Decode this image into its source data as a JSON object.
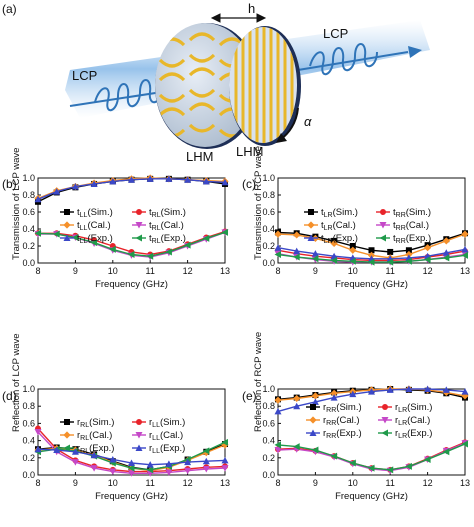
{
  "figure": {
    "panel_a_label": "(a)",
    "illustration": {
      "lcp_in": "LCP",
      "lcp_out": "LCP",
      "h_label": "h",
      "alpha_label": "α",
      "lhm_left": "LHM",
      "lhm_right": "LHM",
      "colors": {
        "beam": "#7fb4e6",
        "gold": "#e8b72a",
        "disk": "#c9d6e6",
        "helix": "#2f74b8"
      }
    }
  },
  "chart_data": [
    {
      "panel": "(b)",
      "type": "line",
      "xlabel": "Frequency (GHz)",
      "ylabel": "Transmission of LCP wave",
      "xlim": [
        8,
        13
      ],
      "ylim": [
        0,
        1.0
      ],
      "xticks": [
        "8",
        "9",
        "10",
        "11",
        "12",
        "13"
      ],
      "yticks": [
        "0.0",
        "0.2",
        "0.4",
        "0.6",
        "0.8",
        "1.0"
      ],
      "legend": [
        {
          "main": "t",
          "sub": "LL",
          "rest": "(Sim.)",
          "color": "#000000",
          "marker": "square"
        },
        {
          "main": "t",
          "sub": "RL",
          "rest": "(Sim.)",
          "color": "#e8232a",
          "marker": "circle"
        },
        {
          "main": "t",
          "sub": "LL",
          "rest": "(Cal.)",
          "color": "#f5902a",
          "marker": "diamond"
        },
        {
          "main": "t",
          "sub": "RL",
          "rest": "(Cal.)",
          "color": "#c548c8",
          "marker": "tri-down"
        },
        {
          "main": "t",
          "sub": "LL",
          "rest": "(Exp.)",
          "color": "#3b48c8",
          "marker": "tri-up"
        },
        {
          "main": "t",
          "sub": "RL",
          "rest": "(Exp.)",
          "color": "#1f9a4a",
          "marker": "tri-left"
        }
      ],
      "series": [
        {
          "color": "#000000",
          "marker": "square",
          "x": [
            8,
            8.5,
            9,
            9.5,
            10,
            10.5,
            11,
            11.5,
            12,
            12.5,
            13
          ],
          "y": [
            0.72,
            0.83,
            0.89,
            0.93,
            0.96,
            0.98,
            0.99,
            0.99,
            0.98,
            0.96,
            0.93
          ]
        },
        {
          "color": "#e8232a",
          "marker": "circle",
          "x": [
            8,
            8.5,
            9,
            9.5,
            10,
            10.5,
            11,
            11.5,
            12,
            12.5,
            13
          ],
          "y": [
            0.35,
            0.35,
            0.32,
            0.27,
            0.2,
            0.13,
            0.1,
            0.14,
            0.22,
            0.3,
            0.37
          ]
        },
        {
          "color": "#f5902a",
          "marker": "diamond",
          "x": [
            8,
            8.5,
            9,
            9.5,
            10,
            10.5,
            11,
            11.5,
            12,
            12.5,
            13
          ],
          "y": [
            0.76,
            0.85,
            0.9,
            0.94,
            0.97,
            0.99,
            1.0,
            0.99,
            0.98,
            0.97,
            0.96
          ]
        },
        {
          "color": "#c548c8",
          "marker": "tri-down",
          "x": [
            8,
            8.5,
            9,
            9.5,
            10,
            10.5,
            11,
            11.5,
            12,
            12.5,
            13
          ],
          "y": [
            0.34,
            0.34,
            0.3,
            0.23,
            0.15,
            0.09,
            0.07,
            0.12,
            0.2,
            0.28,
            0.36
          ]
        },
        {
          "color": "#3b48c8",
          "marker": "tri-up",
          "x": [
            8,
            8.5,
            9,
            9.5,
            10,
            10.5,
            11,
            11.5,
            12,
            12.5,
            13
          ],
          "y": [
            0.75,
            0.84,
            0.9,
            0.93,
            0.96,
            0.98,
            0.99,
            0.99,
            0.98,
            0.96,
            0.95
          ]
        },
        {
          "color": "#1f9a4a",
          "marker": "tri-left",
          "x": [
            8,
            8.5,
            9,
            9.5,
            10,
            10.5,
            11,
            11.5,
            12,
            12.5,
            13
          ],
          "y": [
            0.35,
            0.34,
            0.3,
            0.24,
            0.16,
            0.1,
            0.08,
            0.13,
            0.21,
            0.29,
            0.36
          ]
        }
      ]
    },
    {
      "panel": "(c)",
      "type": "line",
      "xlabel": "Frequency (GHz)",
      "ylabel": "Transmission of RCP wave",
      "xlim": [
        8,
        13
      ],
      "ylim": [
        0,
        1.0
      ],
      "xticks": [
        "8",
        "9",
        "10",
        "11",
        "12",
        "13"
      ],
      "yticks": [
        "0.0",
        "0.2",
        "0.4",
        "0.6",
        "0.8",
        "1.0"
      ],
      "legend": [
        {
          "main": "t",
          "sub": "LR",
          "rest": "(Sim.)",
          "color": "#000000",
          "marker": "square"
        },
        {
          "main": "t",
          "sub": "RR",
          "rest": "(Sim.)",
          "color": "#e8232a",
          "marker": "circle"
        },
        {
          "main": "t",
          "sub": "LR",
          "rest": "(Cal.)",
          "color": "#f5902a",
          "marker": "diamond"
        },
        {
          "main": "t",
          "sub": "RR",
          "rest": "(Cal.)",
          "color": "#c548c8",
          "marker": "tri-down"
        },
        {
          "main": "t",
          "sub": "LR",
          "rest": "(Exp.)",
          "color": "#3b48c8",
          "marker": "tri-up"
        },
        {
          "main": "t",
          "sub": "RR",
          "rest": "(Exp.)",
          "color": "#1f9a4a",
          "marker": "tri-left"
        }
      ],
      "series": [
        {
          "color": "#000000",
          "marker": "square",
          "x": [
            8,
            8.5,
            9,
            9.5,
            10,
            10.5,
            11,
            11.5,
            12,
            12.5,
            13
          ],
          "y": [
            0.36,
            0.35,
            0.31,
            0.26,
            0.2,
            0.15,
            0.13,
            0.15,
            0.21,
            0.28,
            0.35
          ]
        },
        {
          "color": "#e8232a",
          "marker": "circle",
          "x": [
            8,
            8.5,
            9,
            9.5,
            10,
            10.5,
            11,
            11.5,
            12,
            12.5,
            13
          ],
          "y": [
            0.15,
            0.11,
            0.08,
            0.06,
            0.04,
            0.03,
            0.03,
            0.04,
            0.07,
            0.1,
            0.14
          ]
        },
        {
          "color": "#f5902a",
          "marker": "diamond",
          "x": [
            8,
            8.5,
            9,
            9.5,
            10,
            10.5,
            11,
            11.5,
            12,
            12.5,
            13
          ],
          "y": [
            0.34,
            0.33,
            0.29,
            0.23,
            0.15,
            0.09,
            0.06,
            0.1,
            0.18,
            0.26,
            0.34
          ]
        },
        {
          "color": "#c548c8",
          "marker": "tri-down",
          "x": [
            8,
            8.5,
            9,
            9.5,
            10,
            10.5,
            11,
            11.5,
            12,
            12.5,
            13
          ],
          "y": [
            0.11,
            0.07,
            0.04,
            0.02,
            0.01,
            0.01,
            0.01,
            0.02,
            0.04,
            0.07,
            0.1
          ]
        },
        {
          "color": "#3b48c8",
          "marker": "tri-up",
          "x": [
            8,
            8.5,
            9,
            9.5,
            10,
            10.5,
            11,
            11.5,
            12,
            12.5,
            13
          ],
          "y": [
            0.18,
            0.14,
            0.11,
            0.08,
            0.06,
            0.05,
            0.05,
            0.06,
            0.08,
            0.12,
            0.16
          ]
        },
        {
          "color": "#1f9a4a",
          "marker": "tri-left",
          "x": [
            8,
            8.5,
            9,
            9.5,
            10,
            10.5,
            11,
            11.5,
            12,
            12.5,
            13
          ],
          "y": [
            0.1,
            0.07,
            0.05,
            0.03,
            0.02,
            0.01,
            0.01,
            0.02,
            0.04,
            0.06,
            0.09
          ]
        }
      ]
    },
    {
      "panel": "(d)",
      "type": "line",
      "xlabel": "Frequency (GHz)",
      "ylabel": "Reflection of LCP wave",
      "xlim": [
        8,
        13
      ],
      "ylim": [
        0,
        1.0
      ],
      "xticks": [
        "8",
        "9",
        "10",
        "11",
        "12",
        "13"
      ],
      "yticks": [
        "0.0",
        "0.2",
        "0.4",
        "0.6",
        "0.8",
        "1.0"
      ],
      "legend": [
        {
          "main": "r",
          "sub": "RL",
          "rest": "(Sim.)",
          "color": "#000000",
          "marker": "square"
        },
        {
          "main": "r",
          "sub": "LL",
          "rest": "(Sim.)",
          "color": "#e8232a",
          "marker": "circle"
        },
        {
          "main": "r",
          "sub": "RL",
          "rest": "(Cal.)",
          "color": "#f5902a",
          "marker": "diamond"
        },
        {
          "main": "r",
          "sub": "LL",
          "rest": "(Cal.)",
          "color": "#c548c8",
          "marker": "tri-down"
        },
        {
          "main": "r",
          "sub": "RL",
          "rest": "(Exp.)",
          "color": "#1f9a4a",
          "marker": "tri-left"
        },
        {
          "main": "r",
          "sub": "LL",
          "rest": "(Exp.)",
          "color": "#3b48c8",
          "marker": "tri-up"
        }
      ],
      "series": [
        {
          "color": "#000000",
          "marker": "square",
          "x": [
            8,
            8.5,
            9,
            9.5,
            10,
            10.5,
            11,
            11.5,
            12,
            12.5,
            13
          ],
          "y": [
            0.3,
            0.32,
            0.3,
            0.24,
            0.16,
            0.09,
            0.06,
            0.1,
            0.18,
            0.27,
            0.36
          ]
        },
        {
          "color": "#e8232a",
          "marker": "circle",
          "x": [
            8,
            8.5,
            9,
            9.5,
            10,
            10.5,
            11,
            11.5,
            12,
            12.5,
            13
          ],
          "y": [
            0.54,
            0.3,
            0.17,
            0.1,
            0.06,
            0.04,
            0.04,
            0.05,
            0.07,
            0.09,
            0.1
          ]
        },
        {
          "color": "#f5902a",
          "marker": "diamond",
          "x": [
            8,
            8.5,
            9,
            9.5,
            10,
            10.5,
            11,
            11.5,
            12,
            12.5,
            13
          ],
          "y": [
            0.29,
            0.31,
            0.29,
            0.23,
            0.15,
            0.08,
            0.05,
            0.09,
            0.17,
            0.26,
            0.35
          ]
        },
        {
          "color": "#c548c8",
          "marker": "tri-down",
          "x": [
            8,
            8.5,
            9,
            9.5,
            10,
            10.5,
            11,
            11.5,
            12,
            12.5,
            13
          ],
          "y": [
            0.5,
            0.27,
            0.15,
            0.08,
            0.04,
            0.02,
            0.02,
            0.03,
            0.05,
            0.07,
            0.08
          ]
        },
        {
          "color": "#1f9a4a",
          "marker": "tri-left",
          "x": [
            8,
            8.5,
            9,
            9.5,
            10,
            10.5,
            11,
            11.5,
            12,
            12.5,
            13
          ],
          "y": [
            0.27,
            0.3,
            0.28,
            0.22,
            0.14,
            0.08,
            0.06,
            0.1,
            0.18,
            0.28,
            0.38
          ]
        },
        {
          "color": "#3b48c8",
          "marker": "tri-up",
          "x": [
            8,
            8.5,
            9,
            9.5,
            10,
            10.5,
            11,
            11.5,
            12,
            12.5,
            13
          ],
          "y": [
            0.3,
            0.29,
            0.27,
            0.23,
            0.18,
            0.14,
            0.12,
            0.13,
            0.15,
            0.16,
            0.17
          ]
        }
      ]
    },
    {
      "panel": "(e)",
      "type": "line",
      "xlabel": "Frequency (GHz)",
      "ylabel": "Reflection of RCP wave",
      "xlim": [
        8,
        13
      ],
      "ylim": [
        0,
        1.0
      ],
      "xticks": [
        "8",
        "9",
        "10",
        "11",
        "12",
        "13"
      ],
      "yticks": [
        "0.0",
        "0.2",
        "0.4",
        "0.6",
        "0.8",
        "1.0"
      ],
      "legend": [
        {
          "main": "r",
          "sub": "RR",
          "rest": "(Sim.)",
          "color": "#000000",
          "marker": "square"
        },
        {
          "main": "r",
          "sub": "LR",
          "rest": "(Sim.)",
          "color": "#e8232a",
          "marker": "circle"
        },
        {
          "main": "r",
          "sub": "RR",
          "rest": "(Cal.)",
          "color": "#f5902a",
          "marker": "diamond"
        },
        {
          "main": "r",
          "sub": "LR",
          "rest": "(Cal.)",
          "color": "#c548c8",
          "marker": "tri-down"
        },
        {
          "main": "r",
          "sub": "RR",
          "rest": "(Exp.)",
          "color": "#3b48c8",
          "marker": "tri-up"
        },
        {
          "main": "r",
          "sub": "LR",
          "rest": "(Exp.)",
          "color": "#1f9a4a",
          "marker": "tri-left"
        }
      ],
      "series": [
        {
          "color": "#000000",
          "marker": "square",
          "x": [
            8,
            8.5,
            9,
            9.5,
            10,
            10.5,
            11,
            11.5,
            12,
            12.5,
            13
          ],
          "y": [
            0.88,
            0.9,
            0.93,
            0.96,
            0.98,
            0.99,
            1.0,
            0.99,
            0.98,
            0.95,
            0.9
          ]
        },
        {
          "color": "#e8232a",
          "marker": "circle",
          "x": [
            8,
            8.5,
            9,
            9.5,
            10,
            10.5,
            11,
            11.5,
            12,
            12.5,
            13
          ],
          "y": [
            0.3,
            0.31,
            0.28,
            0.22,
            0.14,
            0.08,
            0.06,
            0.1,
            0.19,
            0.29,
            0.38
          ]
        },
        {
          "color": "#f5902a",
          "marker": "diamond",
          "x": [
            8,
            8.5,
            9,
            9.5,
            10,
            10.5,
            11,
            11.5,
            12,
            12.5,
            13
          ],
          "y": [
            0.87,
            0.89,
            0.92,
            0.95,
            0.97,
            0.99,
            1.0,
            1.0,
            0.99,
            0.96,
            0.92
          ]
        },
        {
          "color": "#c548c8",
          "marker": "tri-down",
          "x": [
            8,
            8.5,
            9,
            9.5,
            10,
            10.5,
            11,
            11.5,
            12,
            12.5,
            13
          ],
          "y": [
            0.29,
            0.3,
            0.27,
            0.21,
            0.13,
            0.07,
            0.05,
            0.09,
            0.18,
            0.28,
            0.37
          ]
        },
        {
          "color": "#3b48c8",
          "marker": "tri-up",
          "x": [
            8,
            8.5,
            9,
            9.5,
            10,
            10.5,
            11,
            11.5,
            12,
            12.5,
            13
          ],
          "y": [
            0.74,
            0.8,
            0.85,
            0.9,
            0.94,
            0.97,
            0.99,
            1.0,
            1.0,
            0.99,
            0.97
          ]
        },
        {
          "color": "#1f9a4a",
          "marker": "tri-left",
          "x": [
            8,
            8.5,
            9,
            9.5,
            10,
            10.5,
            11,
            11.5,
            12,
            12.5,
            13
          ],
          "y": [
            0.35,
            0.33,
            0.29,
            0.22,
            0.14,
            0.08,
            0.06,
            0.1,
            0.18,
            0.27,
            0.36
          ]
        }
      ]
    }
  ]
}
